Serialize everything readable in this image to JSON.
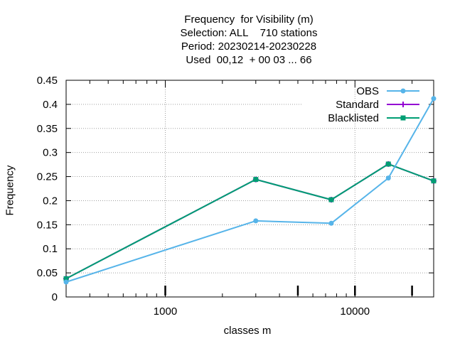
{
  "chart_data": {
    "type": "line",
    "title_lines": [
      "Frequency  for Visibility (m)",
      "Selection: ALL    710 stations",
      "Period: 20230214-20230228",
      "Used  00,12  + 00 03 ... 66"
    ],
    "xlabel": "classes m",
    "ylabel": "Frequency",
    "x_scale": "log",
    "xlim": [
      300,
      26000
    ],
    "ylim": [
      0,
      0.45
    ],
    "x_ticks": [
      1000,
      10000
    ],
    "x_tick_labels": [
      "1000",
      "10000"
    ],
    "y_ticks": [
      0,
      0.05,
      0.1,
      0.15,
      0.2,
      0.25,
      0.3,
      0.35,
      0.4,
      0.45
    ],
    "y_tick_labels": [
      "0",
      "0.05",
      "0.1",
      "0.15",
      "0.2",
      "0.25",
      "0.3",
      "0.35",
      "0.4",
      "0.45"
    ],
    "grid": true,
    "legend_position": "top-right",
    "x": [
      300,
      3000,
      7500,
      15000,
      26000
    ],
    "series": [
      {
        "name": "OBS",
        "color": "#56b4e9",
        "marker": "circle",
        "values": [
          0.031,
          0.158,
          0.153,
          0.247,
          0.412
        ]
      },
      {
        "name": "Standard",
        "color": "#9400d3",
        "marker": "plus",
        "values": [
          0.038,
          0.244,
          0.202,
          0.276,
          0.241
        ]
      },
      {
        "name": "Blacklisted",
        "color": "#009e73",
        "marker": "square",
        "values": [
          0.038,
          0.244,
          0.202,
          0.276,
          0.241
        ]
      }
    ],
    "draw_order": [
      1,
      2,
      0
    ],
    "bold_x_ticks": [
      1000,
      5000,
      10000,
      20000
    ]
  }
}
